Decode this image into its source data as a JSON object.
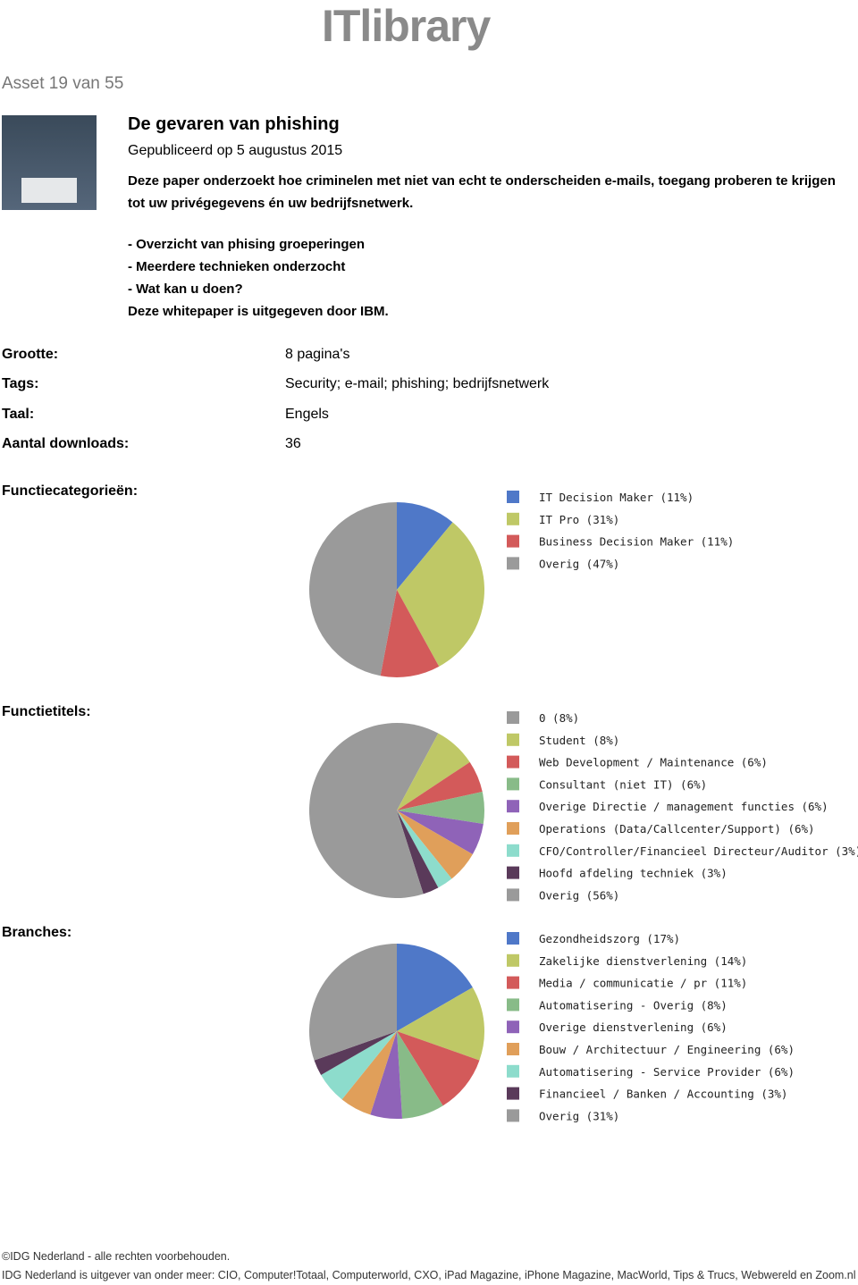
{
  "header": {
    "logo": "ITlibrary"
  },
  "asset_counter": "Asset 19 van 55",
  "article": {
    "title": "De gevaren van phishing",
    "published": "Gepubliceerd op 5 augustus 2015",
    "intro": "Deze paper onderzoekt hoe criminelen met niet van echt te onderscheiden e-mails, toegang proberen te krijgen tot uw privégegevens én uw bedrijfsnetwerk.",
    "bullets": [
      "- Overzicht van phising groeperingen",
      "- Meerdere technieken onderzocht",
      "- Wat kan u doen?"
    ],
    "publisher": "Deze whitepaper is uitgegeven door IBM."
  },
  "meta": [
    [
      "Grootte:",
      "8 pagina's"
    ],
    [
      "Tags:",
      "Security; e-mail; phishing; bedrijfsnetwerk"
    ],
    [
      "Taal:",
      "Engels"
    ],
    [
      "Aantal downloads:",
      "36"
    ]
  ],
  "chart_data": [
    {
      "type": "pie",
      "title": "Functiecategorieën:",
      "categories": [
        "IT Decision Maker (11%)",
        "IT Pro (31%)",
        "Business Decision Maker (11%)",
        "Overig (47%)"
      ],
      "values": [
        11,
        31,
        11,
        47
      ],
      "colors": [
        "#4f78c8",
        "#bfc866",
        "#d35a5a",
        "#9a9a9a"
      ]
    },
    {
      "type": "pie",
      "title": "Functietitels:",
      "categories": [
        "0 (8%)",
        "Student (8%)",
        "Web Development / Maintenance (6%)",
        "Consultant (niet IT) (6%)",
        "Overige Directie / management functies (6%)",
        "Operations (Data/Callcenter/Support) (6%)",
        "CFO/Controller/Financieel Directeur/Auditor (3%)",
        "Hoofd afdeling techniek (3%)",
        "Overig (56%)"
      ],
      "values": [
        8,
        8,
        6,
        6,
        6,
        6,
        3,
        3,
        56
      ],
      "colors": [
        "#9a9a9a",
        "#bfc866",
        "#d35a5a",
        "#88bb88",
        "#8f63b8",
        "#e09f5a",
        "#8ddccc",
        "#5a3a5a",
        "#9a9a9a"
      ]
    },
    {
      "type": "pie",
      "title": "Branches:",
      "categories": [
        "Gezondheidszorg (17%)",
        "Zakelijke dienstverlening (14%)",
        "Media / communicatie / pr (11%)",
        "Automatisering - Overig (8%)",
        "Overige dienstverlening (6%)",
        "Bouw / Architectuur / Engineering (6%)",
        "Automatisering - Service Provider (6%)",
        "Financieel / Banken / Accounting (3%)",
        "Overig (31%)"
      ],
      "values": [
        17,
        14,
        11,
        8,
        6,
        6,
        6,
        3,
        31
      ],
      "colors": [
        "#4f78c8",
        "#bfc866",
        "#d35a5a",
        "#88bb88",
        "#8f63b8",
        "#e09f5a",
        "#8ddccc",
        "#5a3a5a",
        "#9a9a9a"
      ]
    }
  ],
  "footer": {
    "copyright": "©IDG Nederland - alle rechten voorbehouden.",
    "publisher_line": "IDG Nederland is uitgever van onder meer: CIO, Computer!Totaal, Computerworld, CXO, iPad Magazine, iPhone Magazine, MacWorld, Tips & Trucs, Webwereld en Zoom.nl"
  }
}
